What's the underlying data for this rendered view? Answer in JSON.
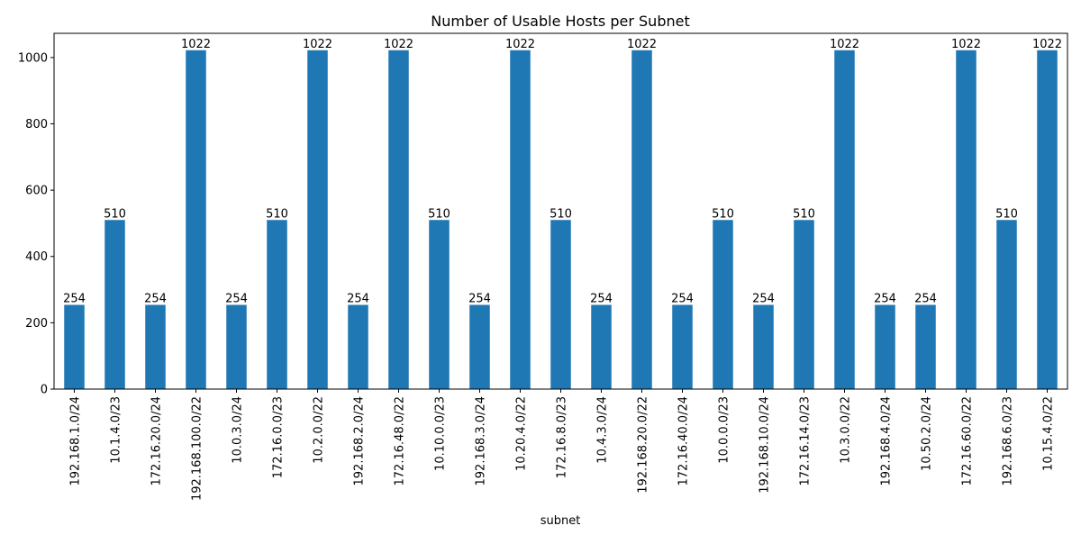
{
  "chart_data": {
    "type": "bar",
    "title": "Number of Usable Hosts per Subnet",
    "xlabel": "subnet",
    "ylabel": "",
    "ylim": [
      0,
      1073
    ],
    "yticks": [
      0,
      200,
      400,
      600,
      800,
      1000
    ],
    "grid": false,
    "legend": "none",
    "bar_color": "#1f77b4",
    "categories": [
      "192.168.1.0/24",
      "10.1.4.0/23",
      "172.16.20.0/24",
      "192.168.100.0/22",
      "10.0.3.0/24",
      "172.16.0.0/23",
      "10.2.0.0/22",
      "192.168.2.0/24",
      "172.16.48.0/22",
      "10.10.0.0/23",
      "192.168.3.0/24",
      "10.20.4.0/22",
      "172.16.8.0/23",
      "10.4.3.0/24",
      "192.168.20.0/22",
      "172.16.40.0/24",
      "10.0.0.0/23",
      "192.168.10.0/24",
      "172.16.14.0/23",
      "10.3.0.0/22",
      "192.168.4.0/24",
      "10.50.2.0/24",
      "172.16.60.0/22",
      "192.168.6.0/23",
      "10.15.4.0/22"
    ],
    "values": [
      254,
      510,
      254,
      1022,
      254,
      510,
      1022,
      254,
      1022,
      510,
      254,
      1022,
      510,
      254,
      1022,
      254,
      510,
      254,
      510,
      1022,
      254,
      254,
      1022,
      510,
      1022
    ]
  }
}
